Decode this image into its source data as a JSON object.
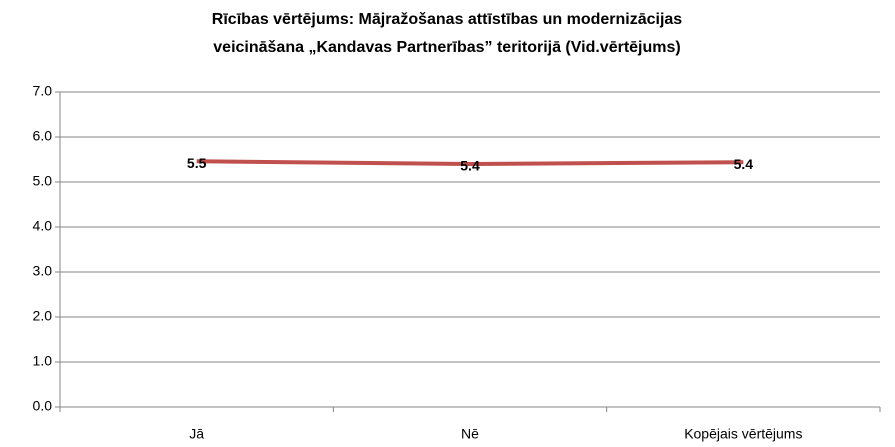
{
  "chart_data": {
    "type": "line",
    "title": [
      "Rīcības vērtējums:  Mājražošanas attīstības un modernizācijas",
      "veicināšana „Kandavas Partnerības” teritorijā  (Vid.vērtējums)"
    ],
    "categories": [
      "Jā",
      "Nē",
      "Kopējais vērtējums"
    ],
    "series": [
      {
        "name": "Vid.vērtējums",
        "color": "#c0504d",
        "values": [
          5.46,
          5.4,
          5.44
        ],
        "value_labels": [
          "5.5",
          "5.4",
          "5.4"
        ]
      }
    ],
    "ylim": [
      0,
      7
    ],
    "yticks": [
      {
        "value": 0,
        "label": "0.0"
      },
      {
        "value": 1,
        "label": "1.0"
      },
      {
        "value": 2,
        "label": "2.0"
      },
      {
        "value": 3,
        "label": "3.0"
      },
      {
        "value": 4,
        "label": "4.0"
      },
      {
        "value": 5,
        "label": "5.0"
      },
      {
        "value": 6,
        "label": "6.0"
      },
      {
        "value": 7,
        "label": "7.0"
      }
    ],
    "grid": true,
    "legend": false
  }
}
